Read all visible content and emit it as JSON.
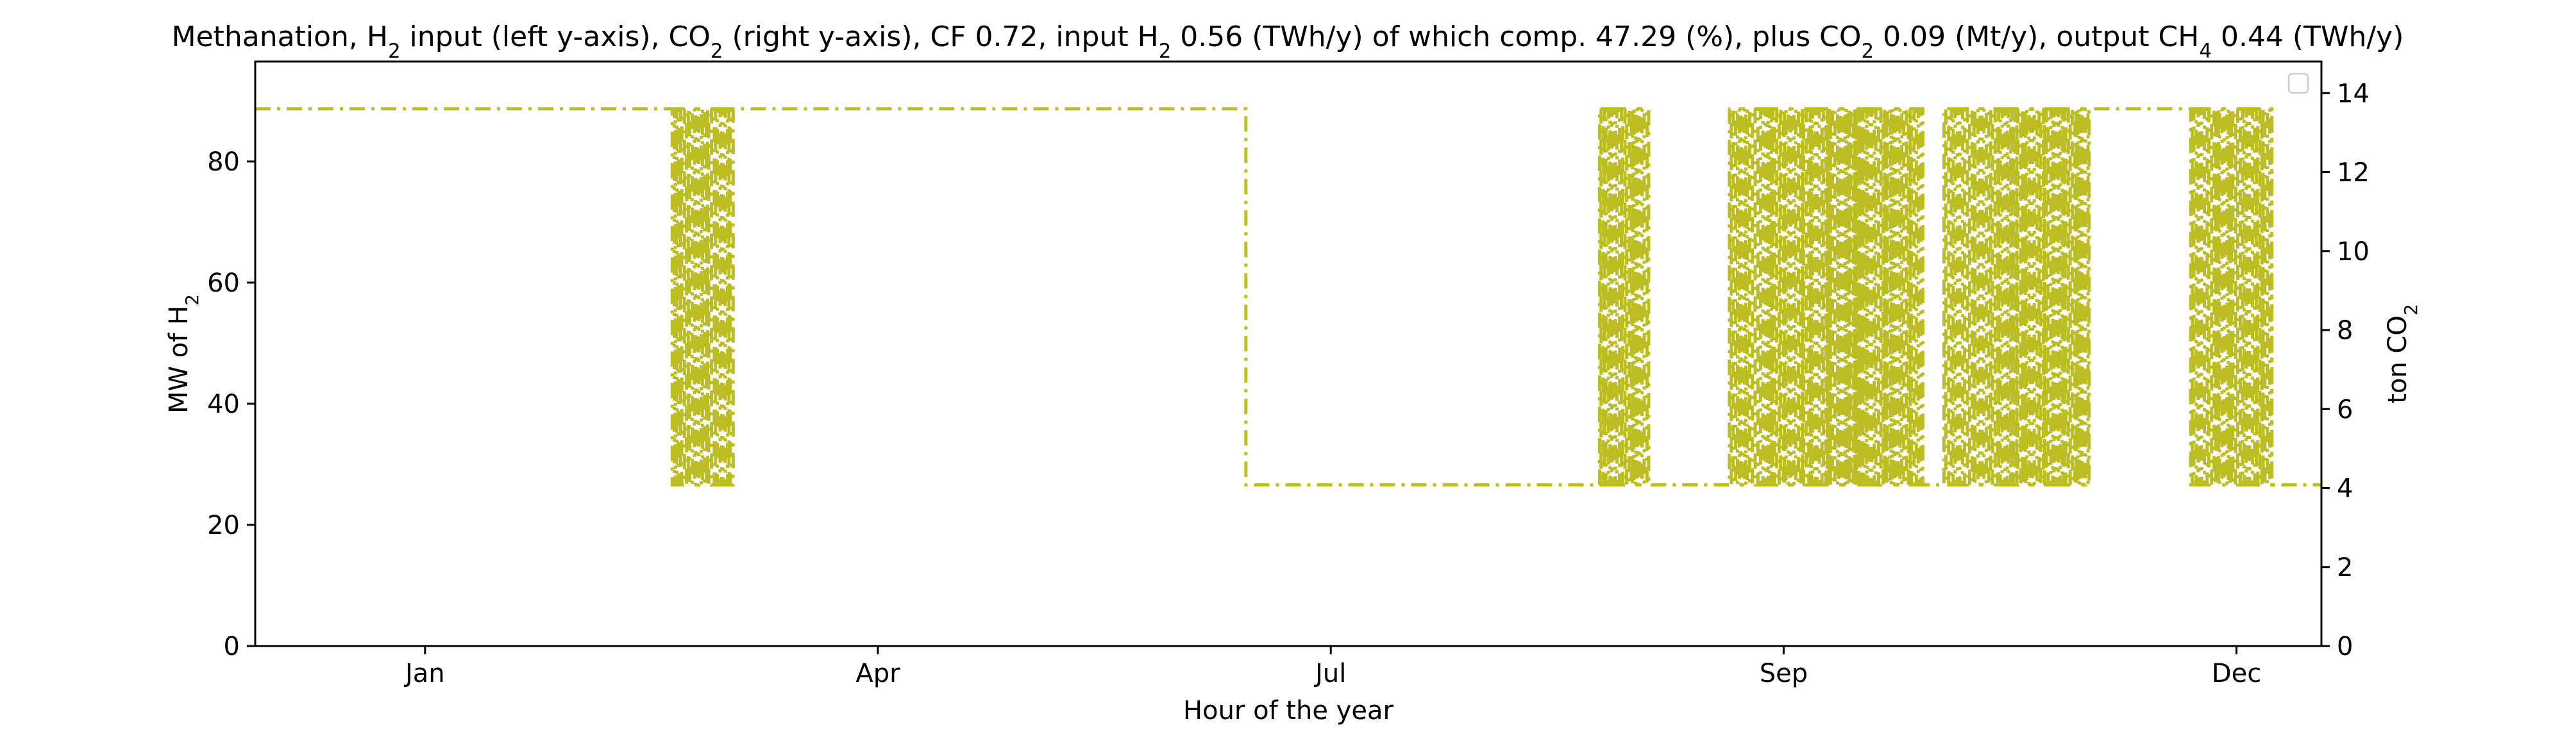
{
  "chart_data": {
    "type": "line",
    "title": {
      "runs": [
        {
          "t": "Methanation, H"
        },
        {
          "t": "2",
          "sub": true
        },
        {
          "t": " input (left y-axis), CO"
        },
        {
          "t": "2",
          "sub": true
        },
        {
          "t": " (right y-axis), CF 0.72, input H"
        },
        {
          "t": "2",
          "sub": true
        },
        {
          "t": " 0.56 (TWh/y) of which comp. 47.29 (%), plus CO"
        },
        {
          "t": "2",
          "sub": true
        },
        {
          "t": " 0.09 (Mt/y), output CH"
        },
        {
          "t": "4",
          "sub": true
        },
        {
          "t": " 0.44 (TWh/y)"
        }
      ]
    },
    "xlabel": "Hour of the year",
    "ylabel_left": {
      "runs": [
        {
          "t": "MW of H"
        },
        {
          "t": "2",
          "sub": true
        }
      ]
    },
    "ylabel_right": {
      "runs": [
        {
          "t": "ton CO"
        },
        {
          "t": "2",
          "sub": true
        }
      ]
    },
    "x_range_hours": [
      0,
      8760
    ],
    "x_ticks": [
      {
        "label": "Jan",
        "hour": 720
      },
      {
        "label": "Apr",
        "hour": 2640
      },
      {
        "label": "Jul",
        "hour": 4560
      },
      {
        "label": "Sep",
        "hour": 6480
      },
      {
        "label": "Dec",
        "hour": 8400
      }
    ],
    "ylim_left": [
      0,
      96.5
    ],
    "yticks_left": [
      0,
      20,
      40,
      60,
      80
    ],
    "ylim_right": [
      0,
      14.8
    ],
    "yticks_right": [
      0,
      2,
      4,
      6,
      8,
      10,
      12,
      14
    ],
    "grid": false,
    "legend": {
      "placement": "top-right",
      "entries": []
    },
    "series": [
      {
        "axis": "left",
        "color": "#bcbd22",
        "style": "dashdot",
        "high": 88.7,
        "low": 26.6,
        "segments": [
          {
            "from": 0,
            "to": 1760,
            "level": "high"
          },
          {
            "from": 1760,
            "to": 2030,
            "level": "oscillating"
          },
          {
            "from": 2030,
            "to": 4200,
            "level": "high"
          },
          {
            "from": 4200,
            "to": 5700,
            "level": "low"
          },
          {
            "from": 5700,
            "to": 5910,
            "level": "oscillating"
          },
          {
            "from": 5910,
            "to": 6250,
            "level": "low"
          },
          {
            "from": 6250,
            "to": 7070,
            "level": "oscillating"
          },
          {
            "from": 7070,
            "to": 7160,
            "level": "low"
          },
          {
            "from": 7160,
            "to": 7780,
            "level": "oscillating"
          },
          {
            "from": 7780,
            "to": 8200,
            "level": "high"
          },
          {
            "from": 8200,
            "to": 8550,
            "level": "oscillating"
          },
          {
            "from": 8550,
            "to": 8760,
            "level": "low"
          }
        ]
      }
    ]
  }
}
